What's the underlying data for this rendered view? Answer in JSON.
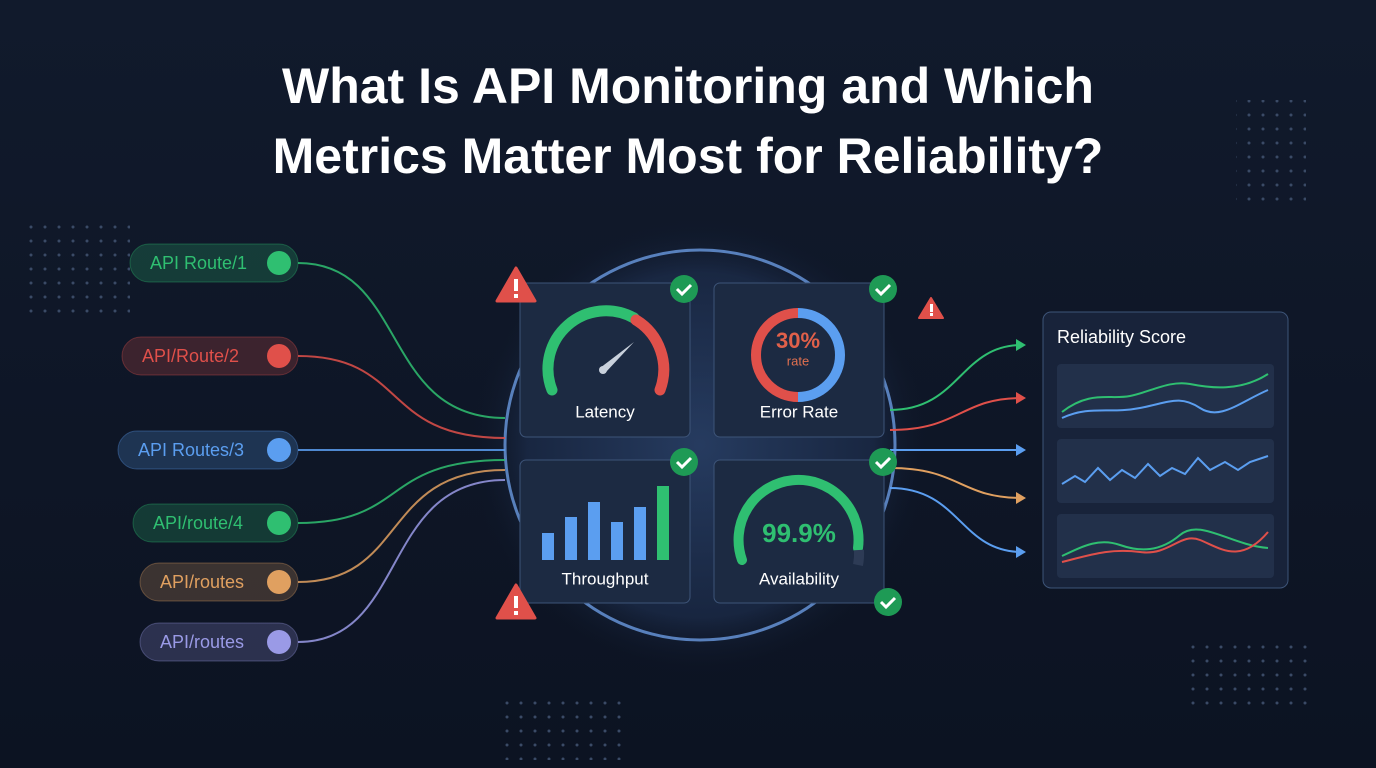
{
  "header": {
    "title_lines": [
      "What Is API Monitoring and Which",
      "Metrics Matter Most for Reliability?"
    ]
  },
  "routes": [
    {
      "label": "API Route/1",
      "color": "#2fbf71"
    },
    {
      "label": "API/Route/2",
      "color": "#e0504a"
    },
    {
      "label": "API Routes/3",
      "color": "#5b9ef0"
    },
    {
      "label": "API/route/4",
      "color": "#2fbf71"
    },
    {
      "label": "API/routes",
      "color": "#e0a060"
    },
    {
      "label": "API/routes",
      "color": "#9a9ae6"
    }
  ],
  "metrics": [
    {
      "label": "Latency"
    },
    {
      "label": "Error Rate",
      "value": "30%",
      "unit": "rate"
    },
    {
      "label": "Throughput"
    },
    {
      "label": "Availability",
      "value": "99.9%"
    }
  ],
  "panel": {
    "title": "Reliability Score"
  }
}
